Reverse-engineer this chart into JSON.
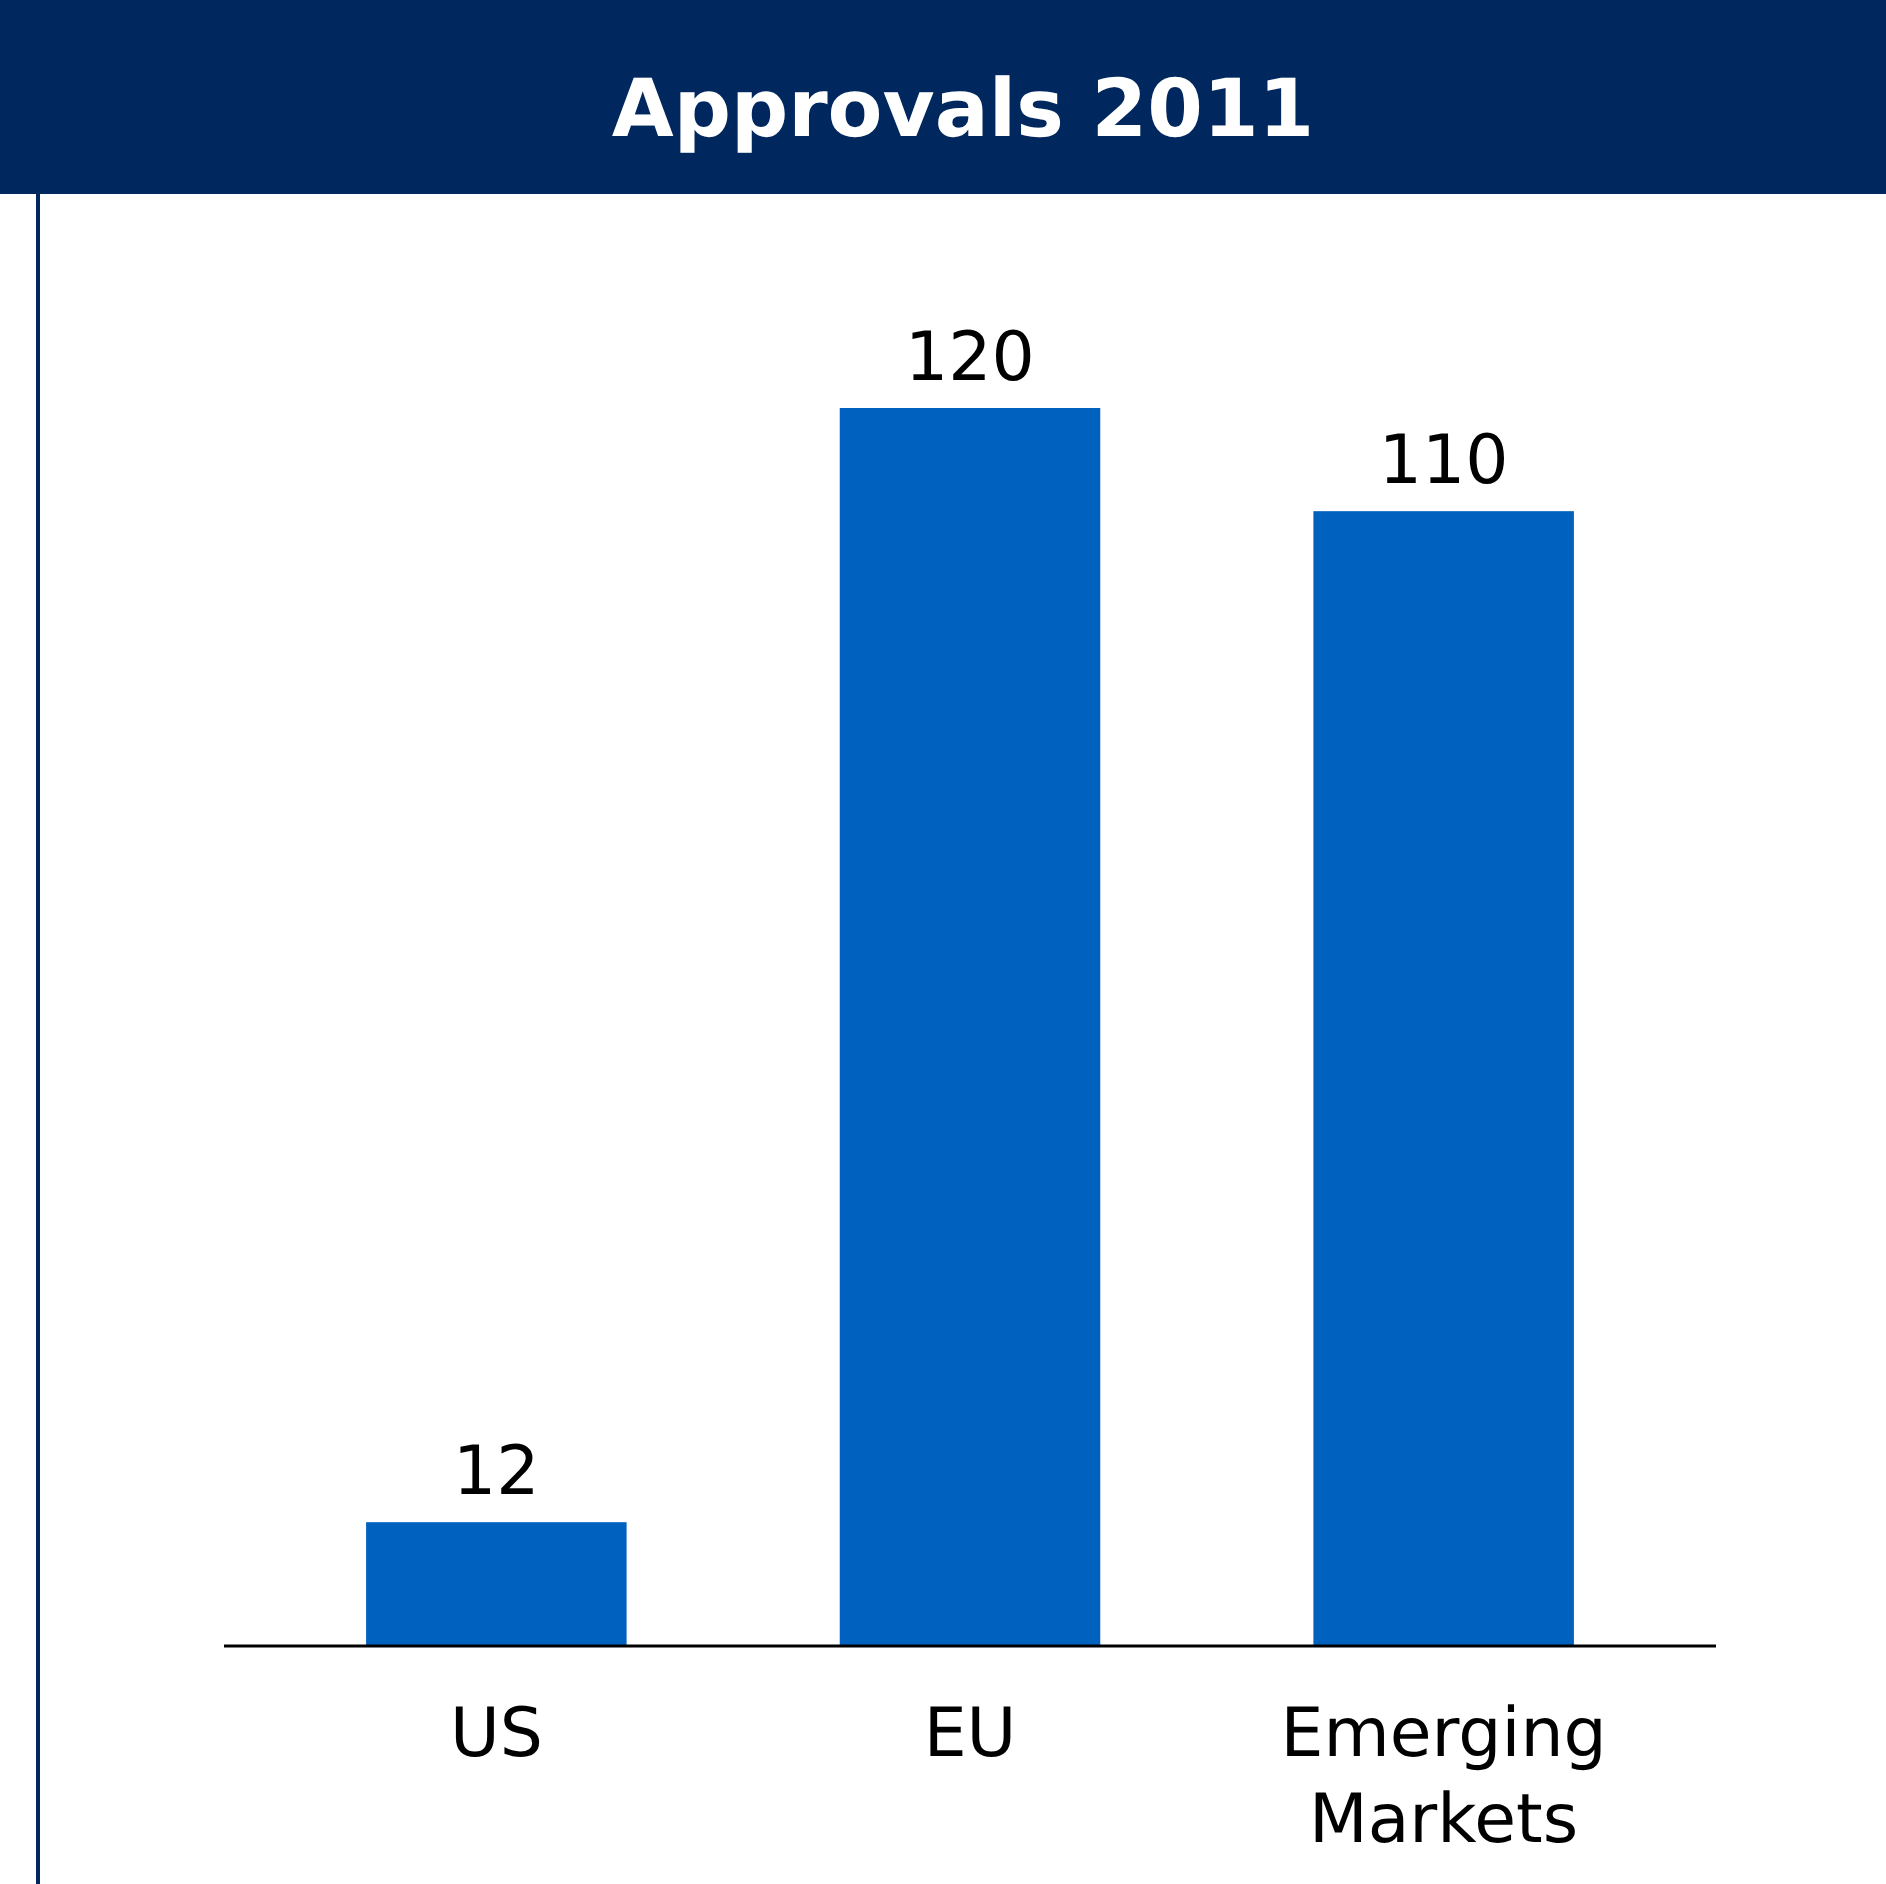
{
  "chart_data": {
    "type": "bar",
    "title": "Approvals 2011",
    "categories": [
      "US",
      "EU",
      "Emerging Markets"
    ],
    "values": [
      12,
      120,
      110
    ],
    "color": "#0062be",
    "data_labels": true
  }
}
